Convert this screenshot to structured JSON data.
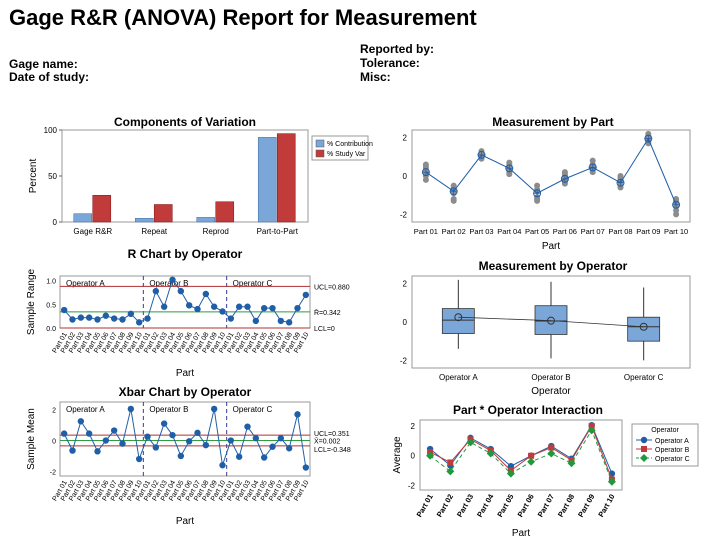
{
  "report": {
    "title": "Gage R&R (ANOVA) Report for Measurement",
    "gage_name_label": "Gage name:",
    "date_label": "Date of study:",
    "reported_by_label": "Reported by:",
    "tolerance_label": "Tolerance:",
    "misc_label": "Misc:"
  },
  "colors": {
    "blue": "#1f5fa8",
    "blue_fill": "#7aa6d8",
    "red": "#c23b3b",
    "green": "#1e9a3c",
    "ucl": "#b03030",
    "center": "#2e9e3e"
  },
  "chart_data": [
    {
      "id": "components",
      "type": "bar",
      "title": "Components of Variation",
      "ylabel": "Percent",
      "categories": [
        "Gage R&R",
        "Repeat",
        "Reprod",
        "Part-to-Part"
      ],
      "series": [
        {
          "name": "% Contribution",
          "values": [
            9,
            4,
            5,
            92
          ]
        },
        {
          "name": "% Study Var",
          "values": [
            29,
            19,
            22,
            96
          ]
        }
      ],
      "ylim": [
        0,
        100
      ],
      "yticks": [
        0,
        50,
        100
      ]
    },
    {
      "id": "r_chart",
      "type": "line",
      "title": "R Chart by Operator",
      "xlabel": "Part",
      "ylabel": "Sample Range",
      "operators": [
        "Operator A",
        "Operator B",
        "Operator C"
      ],
      "parts": [
        "Part 01",
        "Part 02",
        "Part 03",
        "Part 04",
        "Part 05",
        "Part 06",
        "Part 07",
        "Part 08",
        "Part 09",
        "Part 10"
      ],
      "values": [
        0.38,
        0.18,
        0.22,
        0.22,
        0.18,
        0.26,
        0.2,
        0.18,
        0.3,
        0.12,
        0.2,
        0.78,
        0.45,
        1.02,
        0.78,
        0.48,
        0.4,
        0.72,
        0.45,
        0.35,
        0.2,
        0.45,
        0.45,
        0.15,
        0.42,
        0.42,
        0.15,
        0.12,
        0.42,
        0.7
      ],
      "ucl": 0.88,
      "center": 0.342,
      "lcl": 0,
      "ucl_label": "UCL=0.880",
      "center_label": "R̄=0.342",
      "lcl_label": "LCL=0",
      "ylim": [
        0,
        1.1
      ]
    },
    {
      "id": "xbar_chart",
      "type": "line",
      "title": "Xbar Chart by Operator",
      "xlabel": "Part",
      "ylabel": "Sample Mean",
      "operators": [
        "Operator A",
        "Operator B",
        "Operator C"
      ],
      "parts": [
        "Part 01",
        "Part 02",
        "Part 03",
        "Part 04",
        "Part 05",
        "Part 06",
        "Part 07",
        "Part 08",
        "Part 09",
        "Part 10"
      ],
      "values": [
        0.45,
        -0.65,
        1.25,
        0.45,
        -0.7,
        0.0,
        0.65,
        -0.2,
        2.05,
        -1.2,
        0.25,
        -0.45,
        1.1,
        0.35,
        -1.0,
        -0.05,
        0.5,
        -0.3,
        2.05,
        -1.6,
        0.0,
        -1.05,
        0.9,
        0.15,
        -1.1,
        -0.4,
        0.15,
        -0.5,
        1.7,
        -1.75
      ],
      "ucl": 0.351,
      "center": 0.002,
      "lcl": -0.348,
      "ucl_label": "UCL=0.351",
      "center_label": "X̄=0.002",
      "lcl_label": "LCL=-0.348",
      "yticks": [
        -2,
        0,
        2
      ],
      "ylim": [
        -2.3,
        2.5
      ]
    },
    {
      "id": "by_part",
      "type": "scatter",
      "title": "Measurement by Part",
      "xlabel": "Part",
      "categories": [
        "Part 01",
        "Part 02",
        "Part 03",
        "Part 04",
        "Part 05",
        "Part 06",
        "Part 07",
        "Part 08",
        "Part 09",
        "Part 10"
      ],
      "means": [
        0.2,
        -0.8,
        1.1,
        0.4,
        -0.9,
        -0.15,
        0.45,
        -0.35,
        1.95,
        -1.5
      ],
      "points": [
        [
          0.6,
          0.4,
          0.2,
          0.0,
          -0.2,
          0.5
        ],
        [
          -0.5,
          -1.2,
          -1.3,
          -0.7,
          -0.9,
          -0.6
        ],
        [
          1.3,
          1.0,
          0.9,
          1.2,
          1.1,
          1.0
        ],
        [
          0.7,
          0.2,
          0.3,
          0.5,
          0.6,
          0.1
        ],
        [
          -0.5,
          -1.3,
          -1.1,
          -0.8,
          -0.7,
          -1.2
        ],
        [
          0.2,
          -0.4,
          -0.3,
          0.1,
          -0.2,
          0.0
        ],
        [
          0.8,
          0.3,
          0.5,
          0.6,
          0.2,
          0.4
        ],
        [
          0.0,
          -0.6,
          -0.5,
          -0.2,
          -0.3,
          -0.1
        ],
        [
          2.2,
          1.7,
          1.8,
          2.1,
          2.0,
          1.9
        ],
        [
          -1.2,
          -2.0,
          -1.8,
          -1.4,
          -1.6,
          -1.3
        ]
      ],
      "yticks": [
        -2,
        0,
        2
      ],
      "ylim": [
        -2.4,
        2.4
      ]
    },
    {
      "id": "by_operator",
      "type": "box",
      "title": "Measurement by Operator",
      "xlabel": "Operator",
      "categories": [
        "Operator A",
        "Operator B",
        "Operator C"
      ],
      "boxes": [
        {
          "min": -1.4,
          "q1": -0.6,
          "median": 0.1,
          "q3": 0.7,
          "max": 2.2,
          "mean": 0.25
        },
        {
          "min": -1.9,
          "q1": -0.65,
          "median": 0.05,
          "q3": 0.85,
          "max": 2.1,
          "mean": 0.07
        },
        {
          "min": -2.0,
          "q1": -1.0,
          "median": -0.25,
          "q3": 0.25,
          "max": 1.8,
          "mean": -0.25
        }
      ],
      "yticks": [
        -2,
        0,
        2
      ],
      "ylim": [
        -2.4,
        2.4
      ]
    },
    {
      "id": "interaction",
      "type": "line",
      "title": "Part * Operator Interaction",
      "xlabel": "Part",
      "ylabel": "Average",
      "legend_title": "Operator",
      "categories": [
        "Part 01",
        "Part 02",
        "Part 03",
        "Part 04",
        "Part 05",
        "Part 06",
        "Part 07",
        "Part 08",
        "Part 09",
        "Part 10"
      ],
      "series": [
        {
          "name": "Operator A",
          "values": [
            0.45,
            -0.65,
            1.2,
            0.45,
            -0.7,
            0.0,
            0.65,
            -0.2,
            2.05,
            -1.2
          ]
        },
        {
          "name": "Operator B",
          "values": [
            0.25,
            -0.45,
            1.1,
            0.35,
            -1.0,
            0.0,
            0.55,
            -0.3,
            2.0,
            -1.6
          ]
        },
        {
          "name": "Operator C",
          "values": [
            0.0,
            -1.05,
            0.9,
            0.15,
            -1.2,
            -0.4,
            0.15,
            -0.5,
            1.7,
            -1.75
          ]
        }
      ],
      "yticks": [
        -2,
        0,
        2
      ],
      "ylim": [
        -2.3,
        2.4
      ]
    }
  ]
}
